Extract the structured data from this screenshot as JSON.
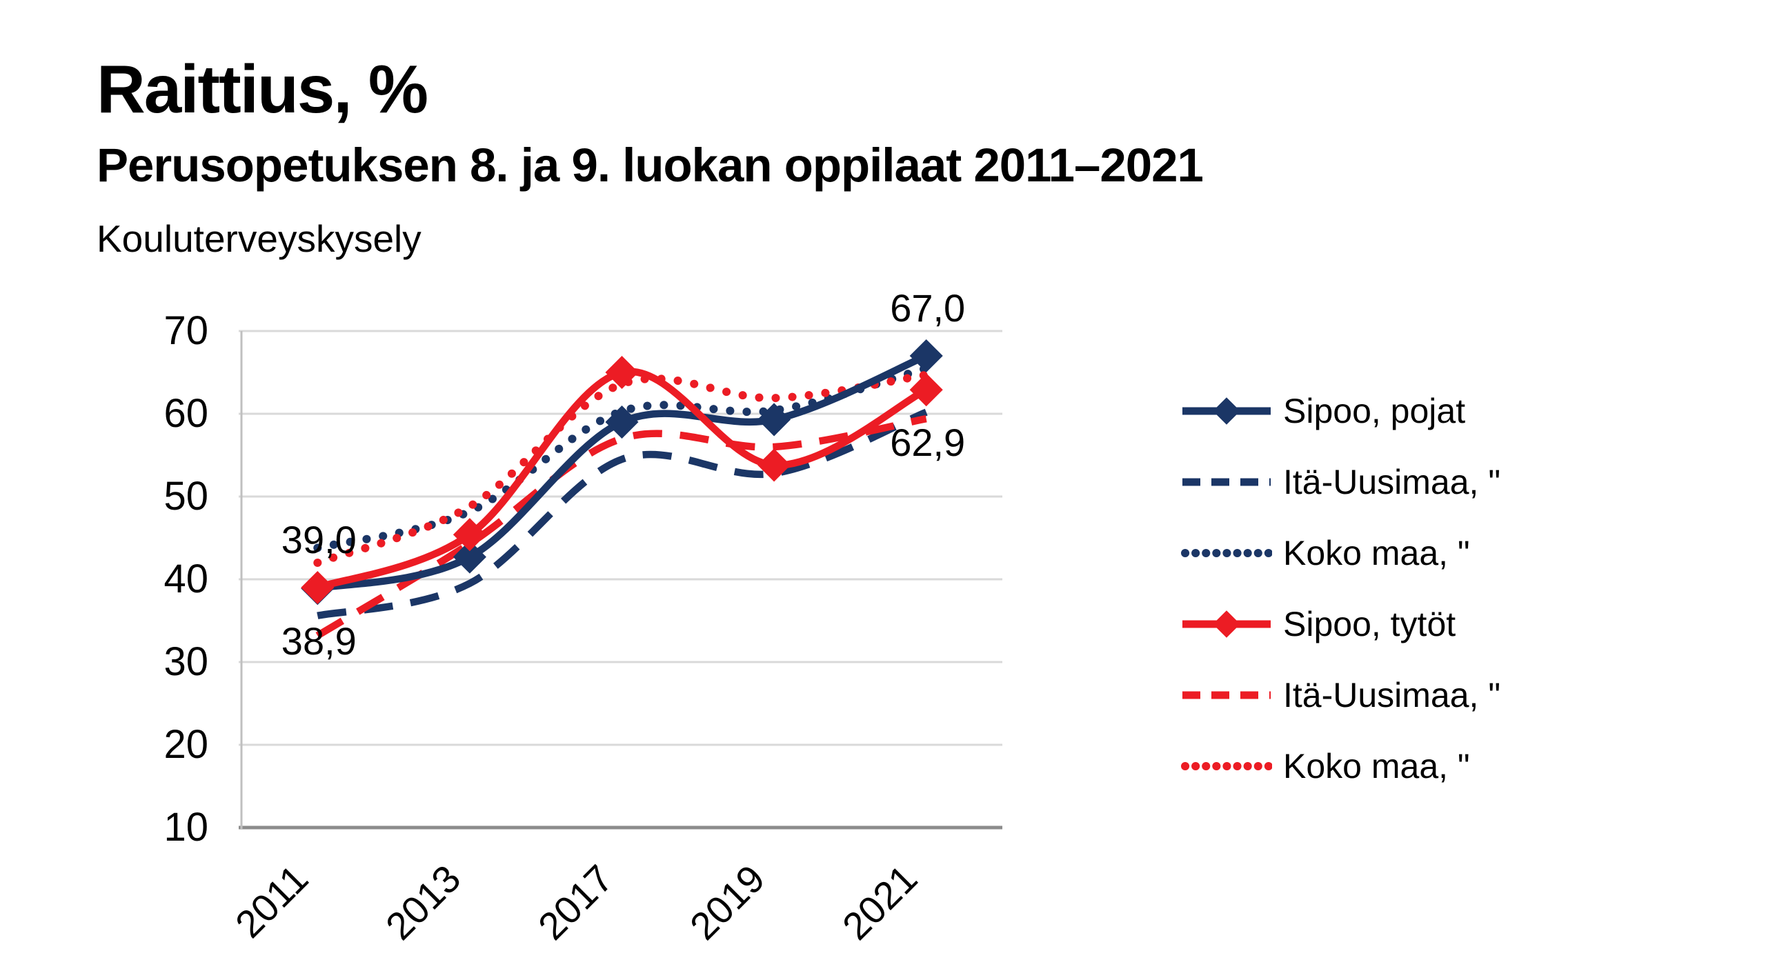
{
  "header": {
    "title": "Raittius, %",
    "subtitle": "Perusopetuksen 8. ja 9. luokan oppilaat 2011–2021",
    "source": "Kouluterveyskysely"
  },
  "colors": {
    "navy": "#1b3666",
    "red": "#ec1c24",
    "gridline": "#d9d9d9",
    "axis_bottom": "#8c8c8c",
    "axis_left": "#bfbfbf",
    "text": "#000000"
  },
  "chart_data": {
    "type": "line",
    "title": "Raittius, %",
    "subtitle": "Perusopetuksen 8. ja 9. luokan oppilaat 2011–2021",
    "source": "Kouluterveyskysely",
    "categories": [
      "2011",
      "2013",
      "2017",
      "2019",
      "2021"
    ],
    "y_ticks": [
      "70",
      "60",
      "50",
      "40",
      "30",
      "20",
      "10"
    ],
    "ylim": [
      10,
      70
    ],
    "grid": "horizontal",
    "legend_position": "right",
    "line_smoothing": true,
    "series": [
      {
        "name": "Sipoo, pojat",
        "color": "#1b3666",
        "style": "solid",
        "marker": "diamond",
        "values": [
          38.9,
          42.7,
          59.0,
          59.3,
          67.0
        ]
      },
      {
        "name": "Itä-Uusimaa, \"",
        "color": "#1b3666",
        "style": "dashed",
        "marker": "none",
        "values": [
          35.6,
          39.5,
          54.5,
          52.8,
          60.2
        ]
      },
      {
        "name": "Koko maa, \"",
        "color": "#1b3666",
        "style": "dotted",
        "marker": "none",
        "values": [
          43.8,
          48.2,
          60.3,
          60.4,
          65.5
        ]
      },
      {
        "name": "Sipoo, tytöt",
        "color": "#ec1c24",
        "style": "solid",
        "marker": "diamond",
        "values": [
          39.0,
          45.4,
          65.0,
          53.8,
          62.9
        ]
      },
      {
        "name": "Itä-Uusimaa, \"",
        "color": "#ec1c24",
        "style": "dashed",
        "marker": "none",
        "values": [
          33.2,
          44.3,
          57.0,
          56.0,
          59.4
        ]
      },
      {
        "name": "Koko maa, \"",
        "color": "#ec1c24",
        "style": "dotted",
        "marker": "none",
        "values": [
          42.0,
          48.8,
          63.6,
          61.9,
          64.7
        ]
      }
    ],
    "point_labels": [
      {
        "text": "39,0",
        "series": 3,
        "point": 0,
        "placement": "above"
      },
      {
        "text": "38,9",
        "series": 0,
        "point": 0,
        "placement": "below"
      },
      {
        "text": "67,0",
        "series": 0,
        "point": 4,
        "placement": "above"
      },
      {
        "text": "62,9",
        "series": 3,
        "point": 4,
        "placement": "below"
      }
    ]
  }
}
